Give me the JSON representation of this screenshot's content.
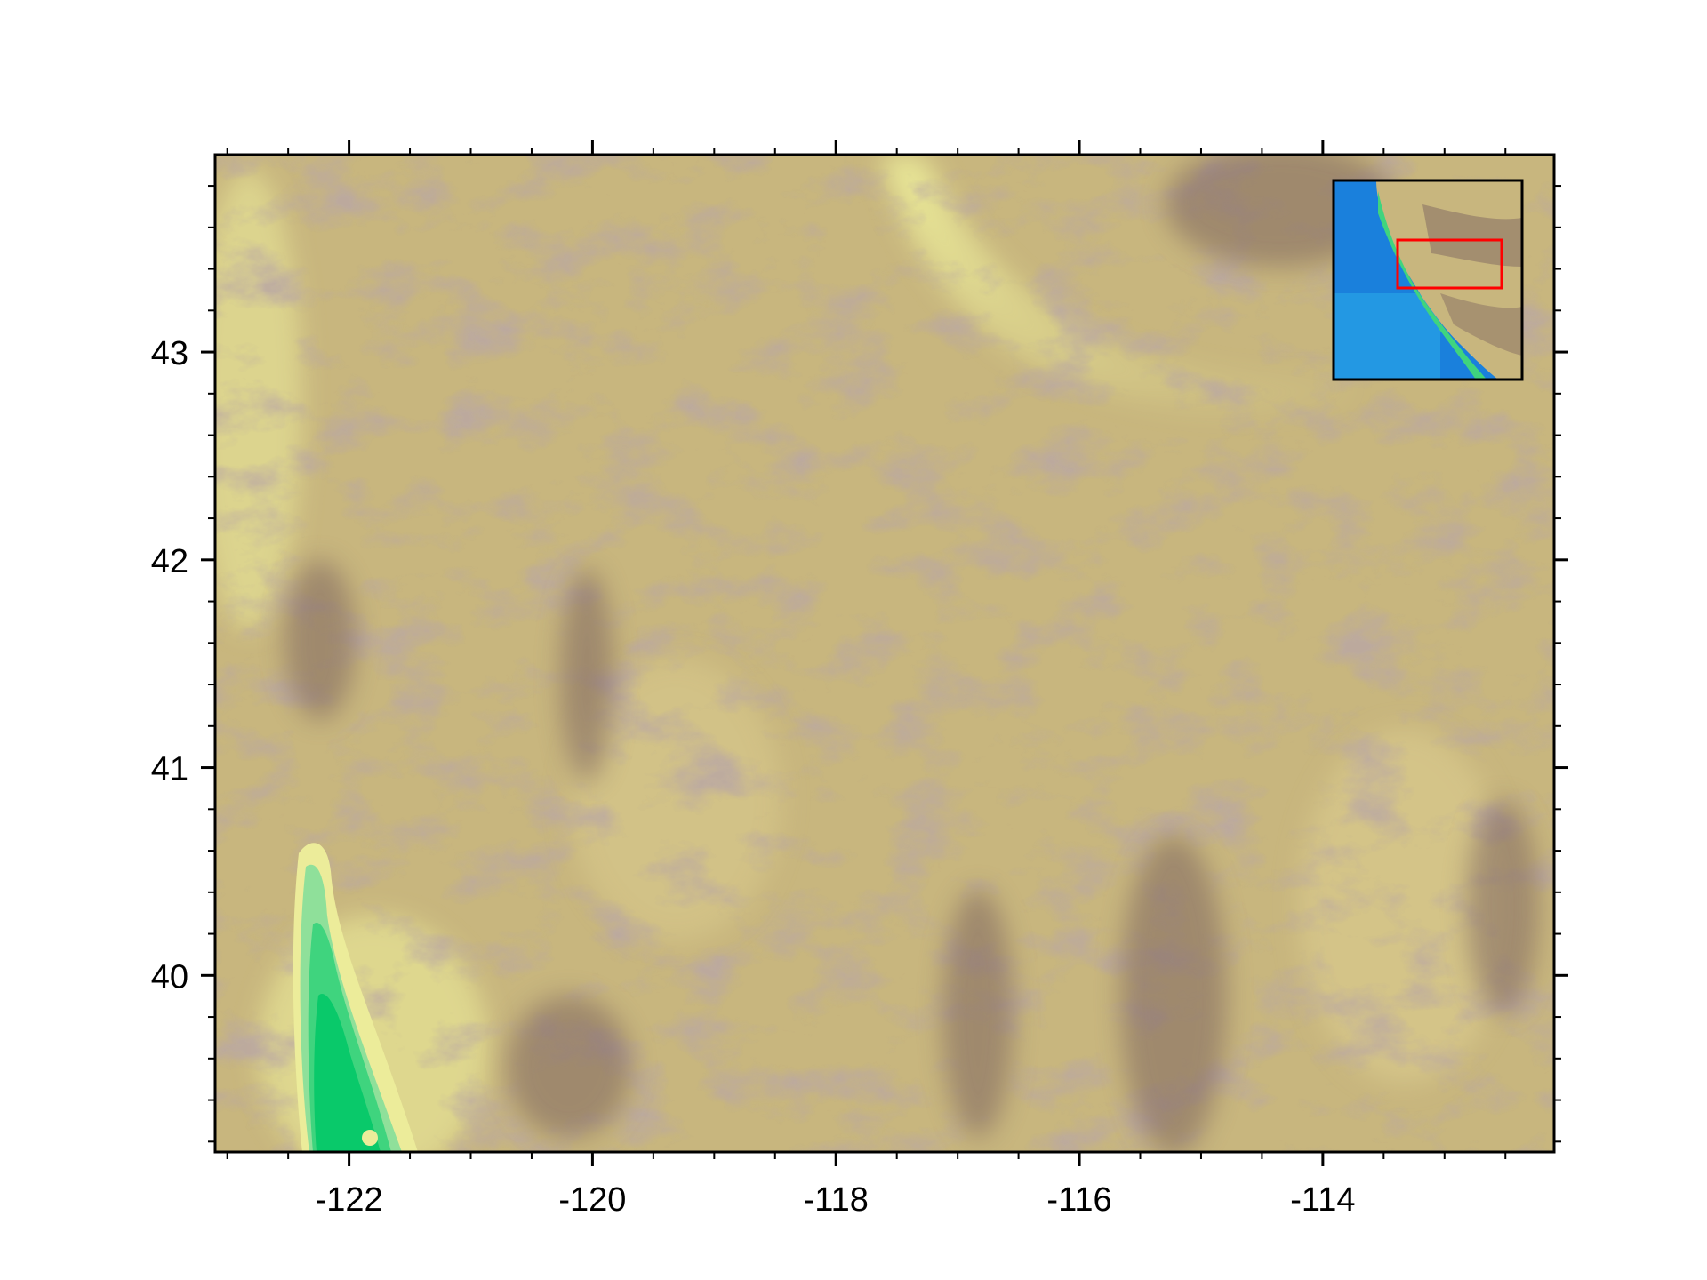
{
  "map": {
    "x_ticks": [
      {
        "value": -122,
        "label": "-122"
      },
      {
        "value": -120,
        "label": "-120"
      },
      {
        "value": -118,
        "label": "-118"
      },
      {
        "value": -116,
        "label": "-116"
      },
      {
        "value": -114,
        "label": "-114"
      }
    ],
    "y_ticks": [
      {
        "value": 40,
        "label": "40"
      },
      {
        "value": 41,
        "label": "41"
      },
      {
        "value": 42,
        "label": "42"
      },
      {
        "value": 43,
        "label": "43"
      }
    ],
    "lon_range": [
      -123.1,
      -112.1
    ],
    "lat_range": [
      39.15,
      43.95
    ],
    "colors": {
      "terrain_low": "#09c96a",
      "terrain_lowland": "#6fd88a",
      "terrain_foothill": "#ecec9a",
      "terrain_mid": "#c8b67e",
      "terrain_high": "#7e6560",
      "ocean": "#1a80dc",
      "inset_box": "#ff0000",
      "frame": "#000000"
    },
    "inset": {
      "description_icon": "locator-inset-map",
      "highlight_color": "#ff0000"
    }
  }
}
